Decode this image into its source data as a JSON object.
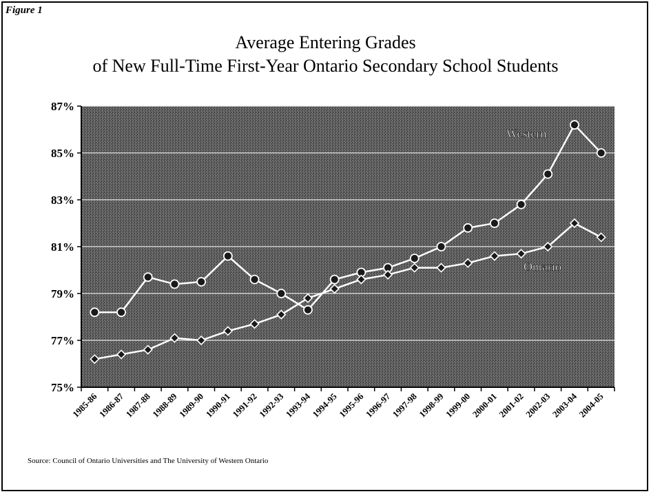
{
  "figure_label": "Figure 1",
  "source_note": "Source:  Council of Ontario Universities and The University of Western Ontario",
  "chart_data": {
    "type": "line",
    "title": "Average Entering Grades",
    "subtitle": "of New Full-Time First-Year Ontario Secondary School Students",
    "xlabel": "",
    "ylabel": "",
    "ylim": [
      75,
      87
    ],
    "yticks": [
      "75%",
      "77%",
      "79%",
      "81%",
      "83%",
      "85%",
      "87%"
    ],
    "grid": true,
    "categories": [
      "1985-86",
      "1986-87",
      "1987-88",
      "1988-89",
      "1989-90",
      "1990-91",
      "1991-92",
      "1992-93",
      "1993-94",
      "1994-95",
      "1995-96",
      "1996-97",
      "1997-98",
      "1998-99",
      "1999-00",
      "2000-01",
      "2001-02",
      "2002-03",
      "2003-04",
      "2004-05"
    ],
    "series": [
      {
        "name": "Western",
        "marker": "circle",
        "values": [
          78.2,
          78.2,
          79.7,
          79.4,
          79.5,
          80.6,
          79.6,
          79.0,
          78.3,
          79.6,
          79.9,
          80.1,
          80.5,
          81.0,
          81.8,
          82.0,
          82.8,
          84.1,
          86.2,
          85.0
        ]
      },
      {
        "name": "Ontario",
        "marker": "diamond",
        "values": [
          76.2,
          76.4,
          76.6,
          77.1,
          77.0,
          77.4,
          77.7,
          78.1,
          78.8,
          79.2,
          79.6,
          79.8,
          80.1,
          80.1,
          80.3,
          80.6,
          80.7,
          81.0,
          82.0,
          81.4
        ]
      }
    ]
  }
}
